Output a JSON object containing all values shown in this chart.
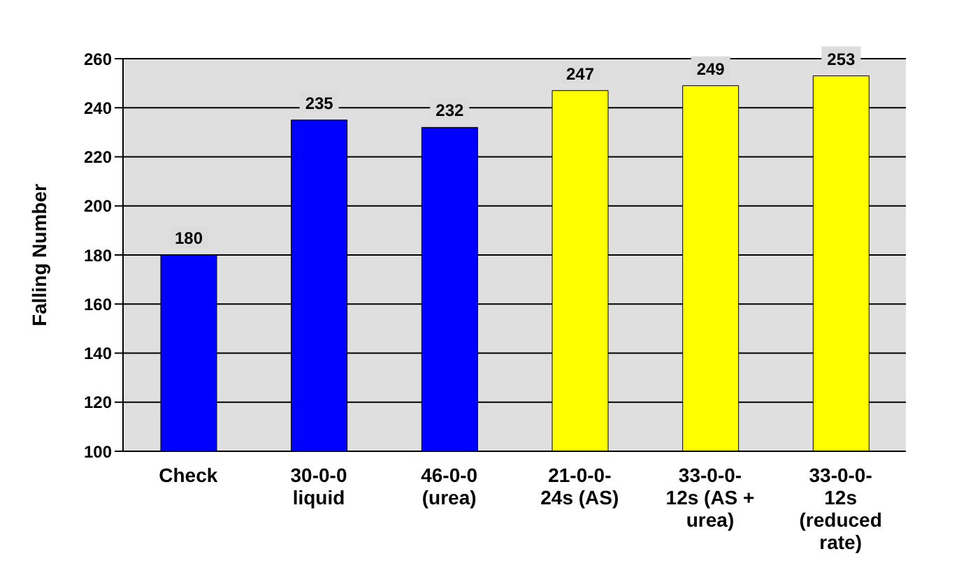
{
  "chart_data": {
    "type": "bar",
    "ylabel": "Falling Number",
    "categories": [
      "Check",
      "30-0-0 liquid",
      "46-0-0 (urea)",
      "21-0-0-24s (AS)",
      "33-0-0-12s (AS + urea)",
      "33-0-0-12s (reduced rate)"
    ],
    "values": [
      180,
      235,
      232,
      247,
      249,
      253
    ],
    "colors": [
      "#0000ff",
      "#0000ff",
      "#0000ff",
      "#ffff00",
      "#ffff00",
      "#ffff00"
    ],
    "ylim": [
      100,
      260
    ],
    "yticks": [
      100,
      120,
      140,
      160,
      180,
      200,
      220,
      240,
      260
    ],
    "grid": "y",
    "data_labels": true
  }
}
